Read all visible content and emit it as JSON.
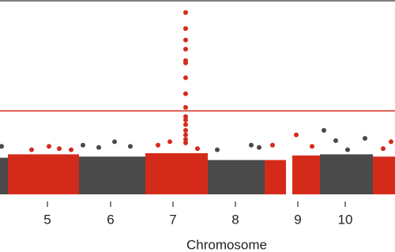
{
  "chart_data": {
    "type": "manhattan",
    "xlabel": "Chromosome",
    "xlim": [
      0,
      500
    ],
    "ylim": [
      0,
      17
    ],
    "xticks": [
      {
        "value": 60,
        "label": "5"
      },
      {
        "value": 140,
        "label": "6"
      },
      {
        "value": 219,
        "label": "7"
      },
      {
        "value": 298,
        "label": "8"
      },
      {
        "value": 377,
        "label": "9"
      },
      {
        "value": 437,
        "label": "10"
      }
    ],
    "threshold": 7.3,
    "threshold_color": "#d42a1a",
    "series": [
      {
        "color": "#4a4a4a",
        "bands": [
          {
            "x": [
              0,
              10
            ],
            "top": 3.2
          }
        ],
        "x": [
          2
        ],
        "values": [
          4.2
        ]
      },
      {
        "color": "#d42a1a",
        "bands": [
          {
            "x": [
              10,
              100
            ],
            "top": 3.5
          }
        ],
        "x": [
          40,
          62,
          75,
          90
        ],
        "values": [
          3.9,
          4.2,
          4.0,
          3.9
        ]
      },
      {
        "color": "#4a4a4a",
        "bands": [
          {
            "x": [
              100,
              184
            ],
            "top": 3.3
          }
        ],
        "x": [
          105,
          125,
          145,
          165
        ],
        "values": [
          4.3,
          4.1,
          4.6,
          4.2
        ]
      },
      {
        "color": "#d42a1a",
        "bands": [
          {
            "x": [
              184,
              263
            ],
            "top": 3.6
          }
        ],
        "x": [
          200,
          215,
          250,
          235,
          235,
          235,
          235,
          235,
          235,
          235,
          235,
          235,
          235,
          235,
          235,
          235,
          235,
          235,
          235
        ],
        "values": [
          4.3,
          4.6,
          4.0,
          15.9,
          14.5,
          13.5,
          12.7,
          11.7,
          11.5,
          10.2,
          8.8,
          7.6,
          6.8,
          6.5,
          6.1,
          5.6,
          5.2,
          4.8,
          4.5
        ]
      },
      {
        "color": "#4a4a4a",
        "bands": [
          {
            "x": [
              263,
              335
            ],
            "top": 3.0
          }
        ],
        "x": [
          275,
          318,
          328
        ],
        "values": [
          3.9,
          4.3,
          4.1
        ]
      },
      {
        "color": "#d42a1a",
        "bands": [
          {
            "x": [
              335,
              362
            ],
            "top": 3.0
          },
          {
            "x": [
              370,
              405
            ],
            "top": 3.4
          }
        ],
        "x": [
          345,
          375,
          395
        ],
        "values": [
          4.3,
          5.2,
          4.2
        ]
      },
      {
        "color": "#4a4a4a",
        "bands": [
          {
            "x": [
              405,
              472
            ],
            "top": 3.5
          }
        ],
        "x": [
          410,
          425,
          440,
          462
        ],
        "values": [
          5.6,
          4.7,
          3.9,
          4.9
        ]
      },
      {
        "color": "#d42a1a",
        "bands": [
          {
            "x": [
              472,
              500
            ],
            "top": 3.3
          }
        ],
        "x": [
          485,
          495
        ],
        "values": [
          4.0,
          4.6
        ]
      }
    ]
  }
}
